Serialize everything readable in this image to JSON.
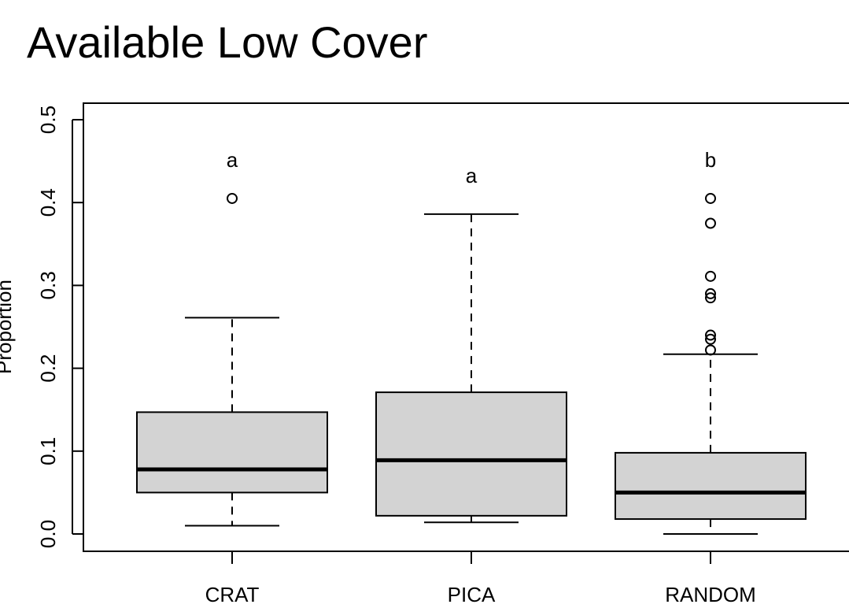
{
  "chart_data": {
    "type": "box",
    "title": "Available Low Cover",
    "xlabel": "",
    "ylabel": "Proportion",
    "ylim": [
      -0.02,
      0.52
    ],
    "yticks": [
      "0.0",
      "0.1",
      "0.2",
      "0.3",
      "0.4",
      "0.5"
    ],
    "ytick_values": [
      0.0,
      0.1,
      0.2,
      0.3,
      0.4,
      0.5
    ],
    "categories": [
      "CRAT",
      "PICA",
      "RANDOM"
    ],
    "boxes": [
      {
        "category": "CRAT",
        "whisker_low": 0.01,
        "q1": 0.05,
        "median": 0.078,
        "q3": 0.147,
        "whisker_high": 0.261,
        "outliers": [
          0.405
        ],
        "significance": "a"
      },
      {
        "category": "PICA",
        "whisker_low": 0.014,
        "q1": 0.022,
        "median": 0.089,
        "q3": 0.171,
        "whisker_high": 0.386,
        "outliers": [],
        "significance": "a"
      },
      {
        "category": "RANDOM",
        "whisker_low": 0.0,
        "q1": 0.018,
        "median": 0.05,
        "q3": 0.098,
        "whisker_high": 0.217,
        "outliers": [
          0.222,
          0.235,
          0.24,
          0.285,
          0.29,
          0.311,
          0.375,
          0.405
        ],
        "significance": "b"
      }
    ],
    "colors": {
      "box_fill": "#d3d3d3",
      "line": "#000000"
    },
    "grid": false
  }
}
